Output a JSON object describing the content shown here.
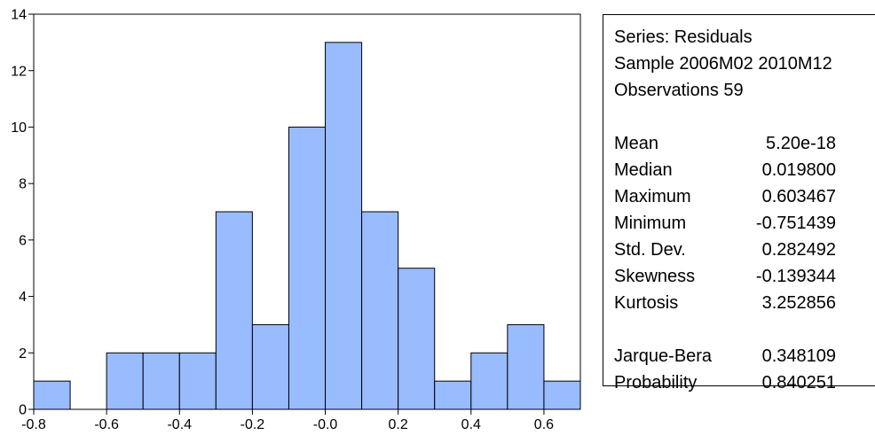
{
  "chart_data": {
    "type": "bar",
    "title": "",
    "xlabel": "",
    "ylabel": "",
    "bins": [
      {
        "x0": -0.8,
        "x1": -0.7,
        "count": 1
      },
      {
        "x0": -0.7,
        "x1": -0.6,
        "count": 0
      },
      {
        "x0": -0.6,
        "x1": -0.5,
        "count": 2
      },
      {
        "x0": -0.5,
        "x1": -0.4,
        "count": 2
      },
      {
        "x0": -0.4,
        "x1": -0.3,
        "count": 2
      },
      {
        "x0": -0.3,
        "x1": -0.2,
        "count": 7
      },
      {
        "x0": -0.2,
        "x1": -0.1,
        "count": 3
      },
      {
        "x0": -0.1,
        "x1": 0.0,
        "count": 10
      },
      {
        "x0": 0.0,
        "x1": 0.1,
        "count": 13
      },
      {
        "x0": 0.1,
        "x1": 0.2,
        "count": 7
      },
      {
        "x0": 0.2,
        "x1": 0.3,
        "count": 5
      },
      {
        "x0": 0.3,
        "x1": 0.4,
        "count": 1
      },
      {
        "x0": 0.4,
        "x1": 0.5,
        "count": 2
      },
      {
        "x0": 0.5,
        "x1": 0.6,
        "count": 3
      },
      {
        "x0": 0.6,
        "x1": 0.7,
        "count": 1
      }
    ],
    "xlim": [
      -0.8,
      0.7
    ],
    "ylim": [
      0,
      14
    ],
    "x_ticks": [
      {
        "value": -0.8,
        "label": "-0.8"
      },
      {
        "value": -0.6,
        "label": "-0.6"
      },
      {
        "value": -0.4,
        "label": "-0.4"
      },
      {
        "value": -0.2,
        "label": "-0.2"
      },
      {
        "value": 0.0,
        "label": "-0.0"
      },
      {
        "value": 0.2,
        "label": "0.2"
      },
      {
        "value": 0.4,
        "label": "0.4"
      },
      {
        "value": 0.6,
        "label": "0.6"
      }
    ],
    "y_ticks": [
      {
        "value": 0,
        "label": "0"
      },
      {
        "value": 2,
        "label": "2"
      },
      {
        "value": 4,
        "label": "4"
      },
      {
        "value": 6,
        "label": "6"
      },
      {
        "value": 8,
        "label": "8"
      },
      {
        "value": 10,
        "label": "10"
      },
      {
        "value": 12,
        "label": "12"
      },
      {
        "value": 14,
        "label": "14"
      }
    ],
    "grid": false,
    "bar_color": "#99bbff",
    "legend": "none"
  },
  "stats": {
    "series": "Series: Residuals",
    "sample": "Sample 2006M02 2010M12",
    "observations": "Observations 59",
    "mean_label": "Mean",
    "mean_value": "5.20e-18",
    "median_label": "Median",
    "median_value": "0.019800",
    "max_label": "Maximum",
    "max_value": "0.603467",
    "min_label": "Minimum",
    "min_value": "-0.751439",
    "std_label": "Std. Dev.",
    "std_value": "0.282492",
    "skew_label": "Skewness",
    "skew_value": "-0.139344",
    "kurt_label": "Kurtosis",
    "kurt_value": "3.252856",
    "jb_label": "Jarque-Bera",
    "jb_value": "0.348109",
    "prob_label": "Probability",
    "prob_value": "0.840251"
  }
}
